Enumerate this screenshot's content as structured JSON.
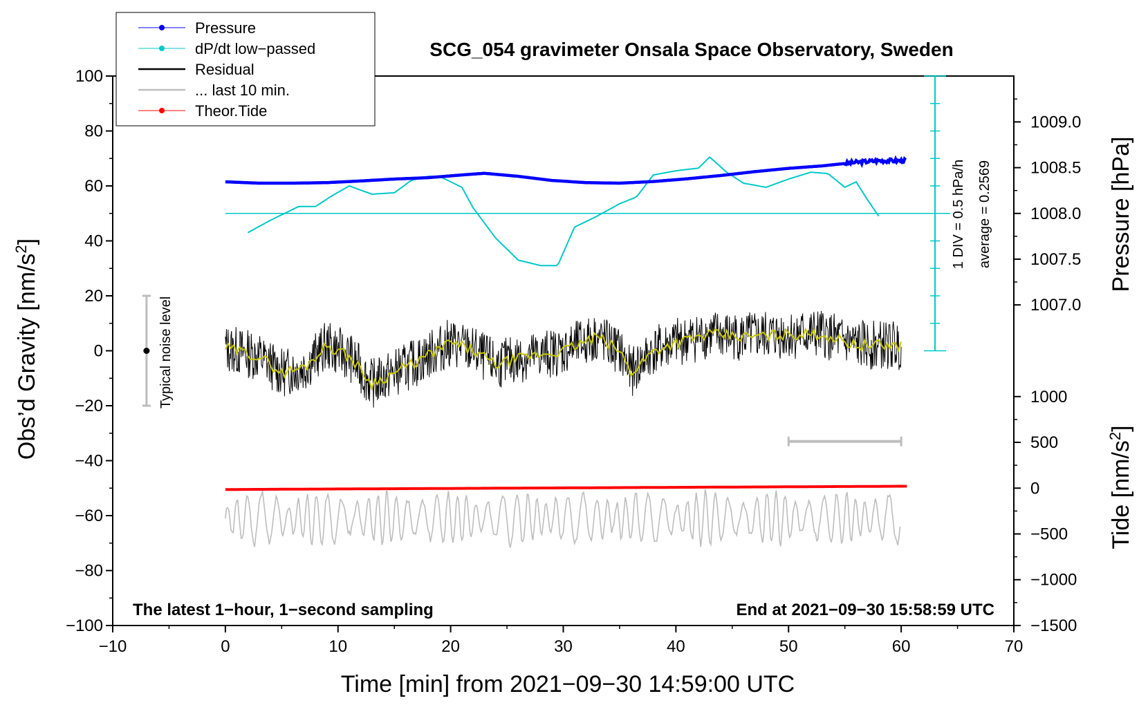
{
  "chart_data": {
    "type": "line",
    "title": "SCG_054 gravimeter Onsala Space Observatory, Sweden",
    "xlabel": "Time [min] from 2021−09−30 14:59:00 UTC",
    "ylabel_left": "Obs’d Gravity [nm/s",
    "ylabel_left_sup": "2",
    "ylabel_left_close": "]",
    "ylabel_right_pressure": "Pressure [hPa]",
    "ylabel_right_tide": "Tide [nm/s",
    "ylabel_right_tide_sup": "2",
    "ylabel_right_tide_close": "]",
    "xlim": [
      -10,
      70
    ],
    "ylim": [
      -100,
      100
    ],
    "x_ticks": [
      "−10",
      "0",
      "10",
      "20",
      "30",
      "40",
      "50",
      "60",
      "70"
    ],
    "y_ticks": [
      "100",
      "80",
      "60",
      "40",
      "20",
      "0",
      "−20",
      "−40",
      "−60",
      "−80",
      "−100"
    ],
    "pressure_axis": {
      "ticks": [
        "1009.0",
        "1008.5",
        "1008.0",
        "1007.5",
        "1007.0"
      ],
      "values": [
        1009.0,
        1008.5,
        1008.0,
        1007.5,
        1007.0
      ],
      "gravity_at_1008": 50,
      "nm_per_hpa": 33.3
    },
    "tide_axis": {
      "ticks": [
        "1000",
        "500",
        "0",
        "−500",
        "−1000",
        "−1500"
      ],
      "values": [
        1000,
        500,
        0,
        -500,
        -1000,
        -1500
      ],
      "gravity_at_zero": -50,
      "nm_per_unit": 0.03333
    },
    "legend": [
      {
        "label": "Pressure",
        "color": "#0000ff",
        "marker": "dot"
      },
      {
        "label": "dP/dt low−passed",
        "color": "#00c8c8",
        "marker": "dot"
      },
      {
        "label": "Residual",
        "color": "#000000",
        "marker": "line"
      },
      {
        "label": "... last 10 min.",
        "color": "#bdbdbd",
        "marker": "line"
      },
      {
        "label": "Theor.Tide",
        "color": "#ff0000",
        "marker": "dot"
      }
    ],
    "series": [
      {
        "name": "Pressure",
        "color": "#0000ff",
        "x": [
          0,
          3,
          6,
          9,
          12,
          15,
          18,
          21,
          23,
          26,
          29,
          32,
          35,
          38,
          41,
          44,
          47,
          50,
          53,
          56,
          58,
          60.5
        ],
        "values": [
          61.5,
          61.0,
          61.0,
          61.2,
          61.8,
          62.5,
          63.0,
          64.0,
          64.6,
          63.5,
          62.0,
          61.2,
          61.0,
          61.6,
          62.6,
          63.8,
          65.2,
          66.4,
          67.3,
          68.6,
          69.2,
          69.2
        ]
      },
      {
        "name": "dP/dt low-passed",
        "color": "#00c8c8",
        "x": [
          2,
          4,
          6.5,
          8,
          9.5,
          11,
          13,
          15,
          16.5,
          18,
          19,
          21,
          22,
          24,
          26,
          28,
          29.5,
          31,
          33,
          35,
          36.5,
          38,
          40,
          42,
          43,
          44.5,
          46,
          48,
          50,
          52,
          53.5,
          55,
          56,
          57,
          58
        ],
        "values": [
          43,
          47.5,
          52.5,
          52.5,
          56.5,
          60,
          57,
          57.5,
          62,
          63.5,
          63.5,
          59.5,
          52,
          41,
          33,
          31,
          31,
          45,
          49,
          53.5,
          56,
          64,
          65.5,
          66.5,
          70.5,
          65,
          61,
          59.5,
          62.5,
          65,
          64.5,
          59.5,
          61.5,
          55,
          49
        ]
      },
      {
        "name": "Residual",
        "color": "#000000",
        "x": [
          0,
          3,
          5,
          7,
          9,
          11,
          13,
          15,
          17,
          20,
          22,
          24,
          27,
          30,
          33,
          35,
          36,
          38,
          40,
          43,
          46,
          50,
          53,
          56,
          60
        ],
        "values": [
          1,
          -2,
          -8,
          -6,
          2,
          -2,
          -12,
          -8,
          -4,
          3,
          0,
          -5,
          -2,
          0,
          5,
          0,
          -8,
          0,
          3,
          6,
          5,
          6,
          6,
          2,
          2
        ]
      },
      {
        "name": "... last 10 min.",
        "color": "#bdbdbd",
        "x": [
          0,
          60
        ],
        "values": [
          -61,
          -61
        ]
      },
      {
        "name": "Theor.Tide",
        "color": "#ff0000",
        "x": [
          0,
          60.5
        ],
        "values": [
          -50.5,
          -49.3
        ]
      }
    ],
    "scale_bar": {
      "x_from": 50,
      "x_to": 60,
      "y": -33
    },
    "noise_bar": {
      "x": -7,
      "center": 0,
      "half_range": 20
    },
    "pressure_scale_bar": {
      "x": 63,
      "y_from": 0,
      "y_to": 100
    },
    "pressure_zero_line": 50,
    "annotations": {
      "noise_label": "Typical noise level",
      "div_label": "1 DIV = 0.5 hPa/h",
      "average_label": "average = 0.2569",
      "bottom_left": "The latest 1−hour, 1−second sampling",
      "bottom_right": "End at 2021−09−30 15:58:59 UTC"
    }
  }
}
